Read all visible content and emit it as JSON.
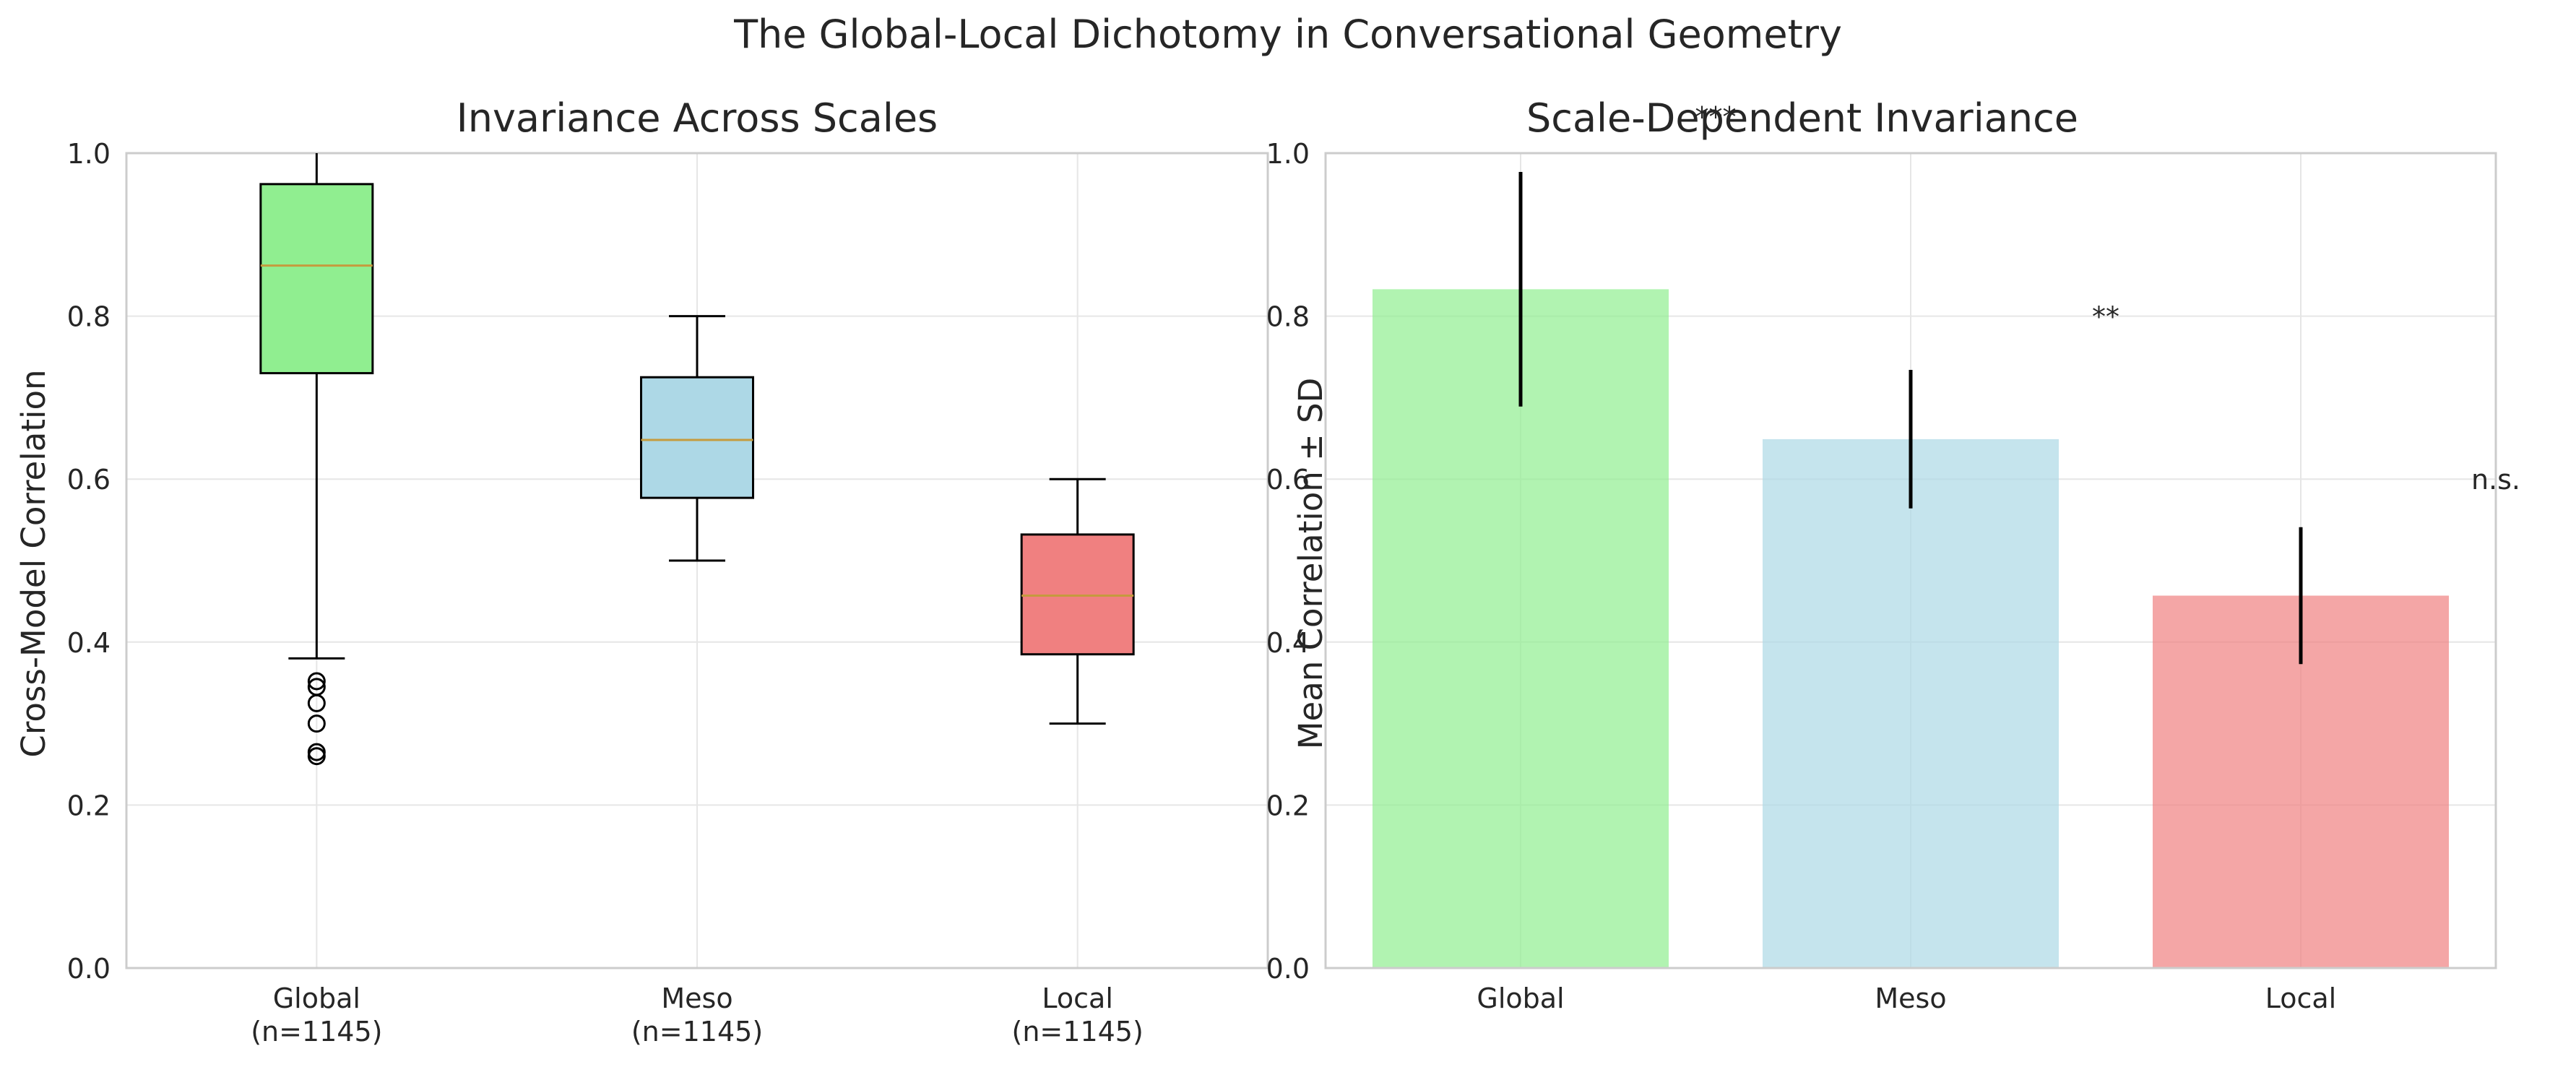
{
  "figure": {
    "suptitle": "The Global-Local Dichotomy in Conversational Geometry"
  },
  "colors": {
    "global": "#90ee90",
    "meso": "#add8e6",
    "local": "#f08080",
    "median": "#c59b3e",
    "grid": "#e6e6e6",
    "spine": "#cccccc",
    "text": "#262626"
  },
  "chart_data": [
    {
      "type": "box",
      "title": "Invariance Across Scales",
      "xlabel": "",
      "ylabel": "Cross-Model Correlation",
      "ylim": [
        0,
        1.0
      ],
      "yticks": [
        "0.0",
        "0.2",
        "0.4",
        "0.6",
        "0.8",
        "1.0"
      ],
      "grid": true,
      "categories": [
        "Global\n(n=1145)",
        "Meso\n(n=1145)",
        "Local\n(n=1145)"
      ],
      "boxes": [
        {
          "name": "Global",
          "whisker_low": 0.38,
          "q1": 0.73,
          "median": 0.862,
          "q3": 0.962,
          "whisker_high": 1.0,
          "fliers": [
            0.352,
            0.345,
            0.325,
            0.3,
            0.265,
            0.26
          ],
          "color": "#90ee90"
        },
        {
          "name": "Meso",
          "whisker_low": 0.5,
          "q1": 0.577,
          "median": 0.648,
          "q3": 0.725,
          "whisker_high": 0.8,
          "fliers": [],
          "color": "#add8e6"
        },
        {
          "name": "Local",
          "whisker_low": 0.3,
          "q1": 0.385,
          "median": 0.457,
          "q3": 0.532,
          "whisker_high": 0.6,
          "fliers": [],
          "color": "#f08080"
        }
      ]
    },
    {
      "type": "bar",
      "title": "Scale-Dependent Invariance",
      "xlabel": "",
      "ylabel": "Mean Correlation ± SD",
      "ylim": [
        0,
        1.0
      ],
      "yticks": [
        "0.0",
        "0.2",
        "0.4",
        "0.6",
        "0.8",
        "1.0"
      ],
      "grid": true,
      "categories": [
        "Global",
        "Meso",
        "Local"
      ],
      "values": [
        0.833,
        0.649,
        0.457
      ],
      "sd": [
        0.144,
        0.085,
        0.084
      ],
      "colors": [
        "#90ee90",
        "#add8e6",
        "#f08080"
      ],
      "annotations": [
        {
          "text": "***",
          "x": 0.5,
          "y": 1.045
        },
        {
          "text": "**",
          "x": 1.5,
          "y": 0.8
        },
        {
          "text": "n.s.",
          "x": 2.5,
          "y": 0.6
        }
      ]
    }
  ]
}
